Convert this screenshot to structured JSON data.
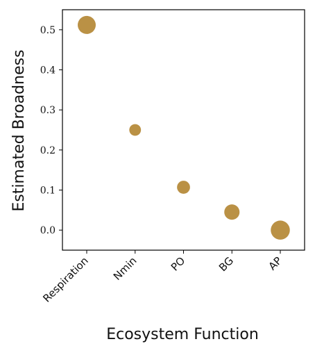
{
  "chart_data": {
    "type": "scatter",
    "title": "",
    "xlabel": "Ecosystem Function",
    "ylabel": "Estimated Broadness",
    "categories": [
      "Respiration",
      "Nmin",
      "PO",
      "BG",
      "AP"
    ],
    "values": [
      0.512,
      0.25,
      0.107,
      0.045,
      0.0
    ],
    "relative_marker_size": [
      1.0,
      0.42,
      0.52,
      0.72,
      1.12
    ],
    "ylim": [
      -0.05,
      0.55
    ],
    "yticks": [
      "0.0",
      "0.1",
      "0.2",
      "0.3",
      "0.4",
      "0.5"
    ],
    "ytick_values": [
      0.0,
      0.1,
      0.2,
      0.3,
      0.4,
      0.5
    ],
    "marker_color": "#BA9145",
    "grid": false,
    "legend": "none"
  }
}
